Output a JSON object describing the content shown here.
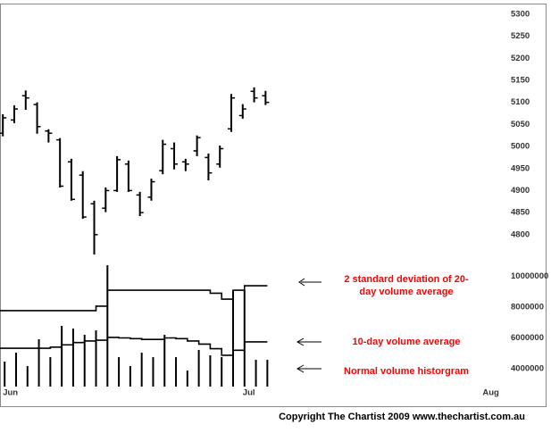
{
  "chart_data": [
    {
      "type": "ohlc",
      "color": "#000000",
      "x": [
        0,
        1,
        2,
        3,
        4,
        5,
        6,
        7,
        8,
        9,
        10,
        11,
        12,
        13,
        14,
        15,
        16,
        17,
        18,
        19,
        20,
        21,
        22,
        23
      ],
      "open": [
        5030,
        5060,
        5115,
        5095,
        5035,
        5015,
        4965,
        4935,
        4870,
        4860,
        4900,
        4960,
        4890,
        4885,
        4945,
        4995,
        4965,
        4990,
        4975,
        4960,
        5040,
        5070,
        5125,
        5115
      ],
      "high": [
        5073,
        5093,
        5127,
        5100,
        5039,
        5019,
        4972,
        4944,
        4877,
        4907,
        4978,
        4968,
        4897,
        4927,
        5015,
        5009,
        4972,
        5025,
        4984,
        5002,
        5119,
        5096,
        5134,
        5126
      ],
      "low": [
        5023,
        5053,
        5083,
        5029,
        5009,
        4907,
        4877,
        4836,
        4755,
        4851,
        4897,
        4897,
        4842,
        4877,
        4937,
        4948,
        4944,
        4978,
        4923,
        4952,
        5033,
        5063,
        5100,
        5094
      ],
      "close": [
        5065,
        5085,
        5110,
        5045,
        5030,
        4910,
        4880,
        4840,
        4800,
        4900,
        4970,
        4900,
        4850,
        4920,
        5005,
        4960,
        4960,
        5020,
        4940,
        4995,
        5110,
        5085,
        5110,
        5100
      ],
      "xlim": [
        -0.25,
        47.6
      ],
      "ylim": [
        4745,
        5324
      ],
      "yticks": [
        4800,
        4850,
        4900,
        4950,
        5000,
        5050,
        5100,
        5150,
        5200,
        5250,
        5300
      ]
    },
    {
      "type": "volume",
      "x": [
        0,
        1,
        2,
        3,
        4,
        5,
        6,
        7,
        8,
        9,
        10,
        11,
        12,
        13,
        14,
        15,
        16,
        17,
        18,
        19,
        20,
        21,
        22,
        23
      ],
      "series": [
        {
          "type": "bar",
          "color": "#000000",
          "values": [
            4460000,
            5040000,
            4170000,
            5910000,
            4750000,
            6780000,
            6610000,
            6200000,
            6490000,
            10720000,
            4750000,
            4170000,
            5040000,
            4750000,
            6200000,
            4750000,
            3880000,
            5220000,
            4870000,
            4750000,
            9100000,
            9100000,
            4580000,
            4580000
          ]
        },
        {
          "type": "line",
          "color": "#000000",
          "values": [
            7770000,
            7770000,
            7770000,
            7770000,
            7770000,
            7770000,
            7770000,
            7770000,
            8060000,
            9100000,
            9100000,
            9100000,
            9100000,
            9100000,
            9100000,
            9100000,
            9100000,
            9100000,
            8900000,
            8520000,
            9100000,
            9390000,
            9390000,
            9390000
          ]
        },
        {
          "type": "line",
          "color": "#000000",
          "values": [
            5330000,
            5330000,
            5330000,
            5330000,
            5400000,
            5550000,
            5700000,
            5800000,
            5850000,
            6030000,
            6000000,
            5950000,
            5900000,
            5900000,
            6000000,
            5950000,
            5800000,
            5600000,
            5300000,
            4870000,
            5200000,
            5740000,
            5740000,
            5740000
          ]
        }
      ],
      "xlim": [
        -0.25,
        47.6
      ],
      "ylim": [
        2840000,
        10840000
      ],
      "yticks": [
        4000000,
        6000000,
        8000000,
        10000000
      ],
      "xticks": [
        {
          "value": 0,
          "label": "Jun"
        },
        {
          "value": 21,
          "label": "Jul"
        },
        {
          "value": 42,
          "label": "Aug"
        }
      ],
      "annotations": [
        {
          "lines": [
            "2 standard deviation of 20-",
            "day volume average"
          ],
          "color": "#ff0000"
        },
        {
          "lines": [
            "10-day volume average"
          ],
          "color": "#ff0000"
        },
        {
          "lines": [
            "Normal volume historgram"
          ],
          "color": "#ff0000"
        }
      ]
    }
  ],
  "footer": "Copyright The Chartist 2009  www.thechartist.com.au"
}
